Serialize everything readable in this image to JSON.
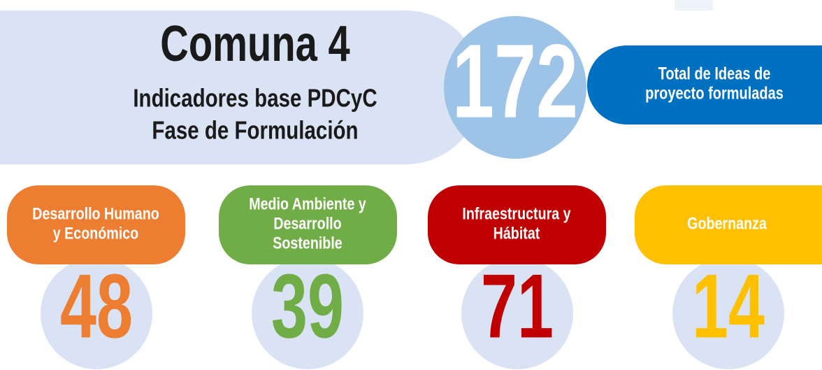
{
  "header": {
    "title": "Comuna 4",
    "subtitle": [
      "Indicadores base PDCyC",
      "Fase de Formulación"
    ]
  },
  "total": {
    "value": "172",
    "label": [
      "Total de Ideas de",
      "proyecto formuladas"
    ]
  },
  "categories": [
    {
      "name": [
        "Desarrollo Humano",
        "y Económico"
      ],
      "value": "48",
      "color": "#ed7d31"
    },
    {
      "name": [
        "Medio Ambiente y",
        "Desarrollo",
        "Sostenible"
      ],
      "value": "39",
      "color": "#70ad47"
    },
    {
      "name": [
        "Infraestructura y",
        "Hábitat"
      ],
      "value": "71",
      "color": "#c00000"
    },
    {
      "name": [
        "Gobernanza"
      ],
      "value": "14",
      "color": "#ffc000"
    }
  ]
}
